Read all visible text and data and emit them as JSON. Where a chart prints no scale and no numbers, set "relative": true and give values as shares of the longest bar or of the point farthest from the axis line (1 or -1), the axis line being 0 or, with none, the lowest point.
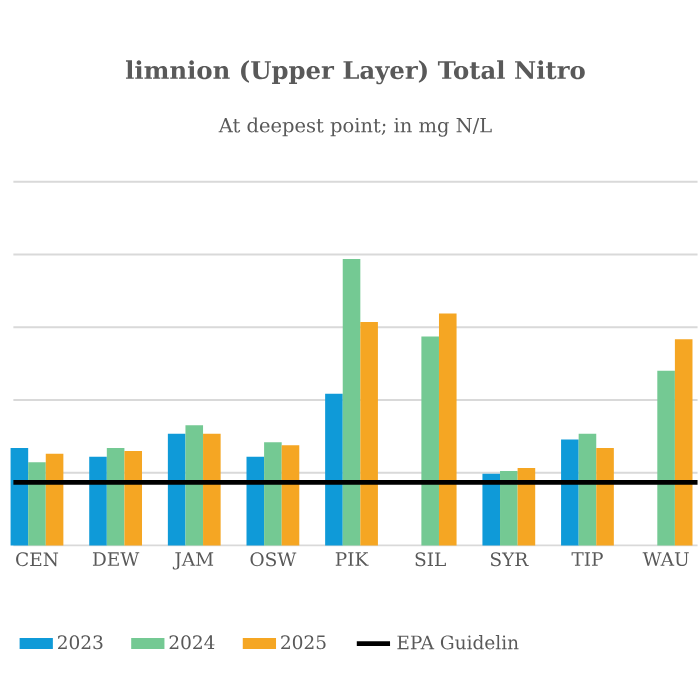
{
  "chart_data": {
    "type": "bar",
    "title": "limnion (Upper Layer) Total Nitro",
    "subtitle": "At deepest point; in mg N/L",
    "relative": true,
    "categories": [
      "CEN",
      "DEW",
      "JAM",
      "OSW",
      "PIK",
      "SIL",
      "SYR",
      "TIP",
      "WAU"
    ],
    "series": [
      {
        "name": "2023",
        "color": "#0f9ad8",
        "values": [
          0.34,
          0.31,
          0.39,
          0.31,
          0.53,
          null,
          0.25,
          0.37,
          null
        ]
      },
      {
        "name": "2024",
        "color": "#74c993",
        "values": [
          0.29,
          0.34,
          0.42,
          0.36,
          1,
          0.73,
          0.26,
          0.39,
          0.61
        ]
      },
      {
        "name": "2025",
        "color": "#f5a623",
        "values": [
          0.32,
          0.33,
          0.39,
          0.35,
          0.78,
          0.81,
          0.27,
          0.34,
          0.72
        ]
      }
    ],
    "ref_lines": [
      {
        "axis": "y",
        "value": 0.22,
        "label": "EPA Guidelin",
        "color": "#000000"
      }
    ],
    "grid": "y",
    "legend": "bottom",
    "tick_labels": "x"
  }
}
